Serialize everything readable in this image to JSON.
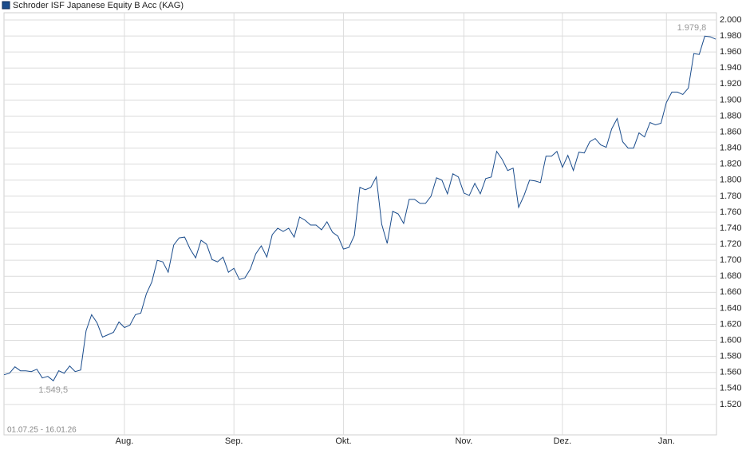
{
  "chart_data": {
    "type": "line",
    "title": "Schroder ISF Japanese Equity B Acc (KAG)",
    "date_range": "01.07.25 - 16.01.26",
    "categories": [
      null,
      null,
      null,
      null,
      null,
      null,
      null,
      null,
      null,
      null,
      null,
      null,
      null,
      null,
      null,
      null,
      null,
      null,
      null,
      null,
      null,
      null,
      "Aug.",
      null,
      null,
      null,
      null,
      null,
      null,
      null,
      null,
      null,
      null,
      null,
      null,
      null,
      null,
      null,
      null,
      null,
      null,
      null,
      "Sep.",
      null,
      null,
      null,
      null,
      null,
      null,
      null,
      null,
      null,
      null,
      null,
      null,
      null,
      null,
      null,
      null,
      null,
      null,
      null,
      "Okt.",
      null,
      null,
      null,
      null,
      null,
      null,
      null,
      null,
      null,
      null,
      null,
      null,
      null,
      null,
      null,
      null,
      null,
      null,
      null,
      null,
      null,
      "Nov.",
      null,
      null,
      null,
      null,
      null,
      null,
      null,
      null,
      null,
      null,
      null,
      null,
      null,
      null,
      null,
      null,
      null,
      "Dez.",
      null,
      null,
      null,
      null,
      null,
      null,
      null,
      null,
      null,
      null,
      null,
      null,
      null,
      null,
      null,
      null,
      null,
      null,
      "Jan.",
      null,
      null,
      null,
      null,
      null,
      null,
      null,
      null,
      null
    ],
    "series": [
      {
        "color": "#1a4c8c",
        "values": [
          1557,
          1559,
          1567,
          1562,
          1562,
          1561,
          1564,
          1553,
          1555,
          1549.5,
          1562,
          1559,
          1568,
          1561,
          1563,
          1612,
          1632,
          1622,
          1604,
          1607,
          1610,
          1623,
          1616,
          1619,
          1632,
          1634,
          1658,
          1673,
          1700,
          1698,
          1685,
          1719,
          1728,
          1729,
          1714,
          1703,
          1725,
          1720,
          1701,
          1698,
          1704,
          1685,
          1690,
          1676,
          1678,
          1689,
          1708,
          1718,
          1704,
          1732,
          1740,
          1736,
          1740,
          1729,
          1754,
          1750,
          1744,
          1744,
          1738,
          1748,
          1735,
          1730,
          1714,
          1716,
          1731,
          1791,
          1788,
          1791,
          1804,
          1745,
          1721,
          1761,
          1758,
          1746,
          1776,
          1776,
          1771,
          1771,
          1780,
          1803,
          1800,
          1783,
          1808,
          1804,
          1784,
          1781,
          1796,
          1783,
          1802,
          1804,
          1836,
          1826,
          1812,
          1815,
          1766,
          1781,
          1800,
          1799,
          1797,
          1830,
          1830,
          1836,
          1816,
          1831,
          1812,
          1835,
          1834,
          1848,
          1852,
          1844,
          1841,
          1864,
          1877,
          1848,
          1840,
          1840,
          1859,
          1854,
          1872,
          1869,
          1871,
          1897,
          1910,
          1910,
          1907,
          1915,
          1958,
          1957,
          1979.8,
          1979,
          1976
        ],
        "value_labels": [
          null,
          null,
          null,
          null,
          null,
          null,
          null,
          null,
          null,
          "1.549,5",
          null,
          null,
          null,
          null,
          null,
          null,
          null,
          null,
          null,
          null,
          null,
          null,
          null,
          null,
          null,
          null,
          null,
          null,
          null,
          null,
          null,
          null,
          null,
          null,
          null,
          null,
          null,
          null,
          null,
          null,
          null,
          null,
          null,
          null,
          null,
          null,
          null,
          null,
          null,
          null,
          null,
          null,
          null,
          null,
          null,
          null,
          null,
          null,
          null,
          null,
          null,
          null,
          null,
          null,
          null,
          null,
          null,
          null,
          null,
          null,
          null,
          null,
          null,
          null,
          null,
          null,
          null,
          null,
          null,
          null,
          null,
          null,
          null,
          null,
          null,
          null,
          null,
          null,
          null,
          null,
          null,
          null,
          null,
          null,
          null,
          null,
          null,
          null,
          null,
          null,
          null,
          null,
          null,
          null,
          null,
          null,
          null,
          null,
          null,
          null,
          null,
          null,
          null,
          null,
          null,
          null,
          null,
          null,
          null,
          null,
          null,
          null,
          null,
          null,
          null,
          null,
          null,
          null,
          "1.979,8",
          null,
          null
        ]
      }
    ],
    "ylim": [
      1482,
      2009
    ],
    "yticks": [
      {
        "value": 1520,
        "label": "1.520"
      },
      {
        "value": 1540,
        "label": "1.540"
      },
      {
        "value": 1560,
        "label": "1.560"
      },
      {
        "value": 1580,
        "label": "1.580"
      },
      {
        "value": 1600,
        "label": "1.600"
      },
      {
        "value": 1620,
        "label": "1.620"
      },
      {
        "value": 1640,
        "label": "1.640"
      },
      {
        "value": 1660,
        "label": "1.660"
      },
      {
        "value": 1680,
        "label": "1.680"
      },
      {
        "value": 1700,
        "label": "1.700"
      },
      {
        "value": 1720,
        "label": "1.720"
      },
      {
        "value": 1740,
        "label": "1.740"
      },
      {
        "value": 1760,
        "label": "1.760"
      },
      {
        "value": 1780,
        "label": "1.780"
      },
      {
        "value": 1800,
        "label": "1.800"
      },
      {
        "value": 1820,
        "label": "1.820"
      },
      {
        "value": 1840,
        "label": "1.840"
      },
      {
        "value": 1860,
        "label": "1.860"
      },
      {
        "value": 1880,
        "label": "1.880"
      },
      {
        "value": 1900,
        "label": "1.900"
      },
      {
        "value": 1920,
        "label": "1.920"
      },
      {
        "value": 1940,
        "label": "1.940"
      },
      {
        "value": 1960,
        "label": "1.960"
      },
      {
        "value": 1980,
        "label": "1.980"
      },
      {
        "value": 2000,
        "label": "2.000"
      }
    ],
    "grid": true
  }
}
